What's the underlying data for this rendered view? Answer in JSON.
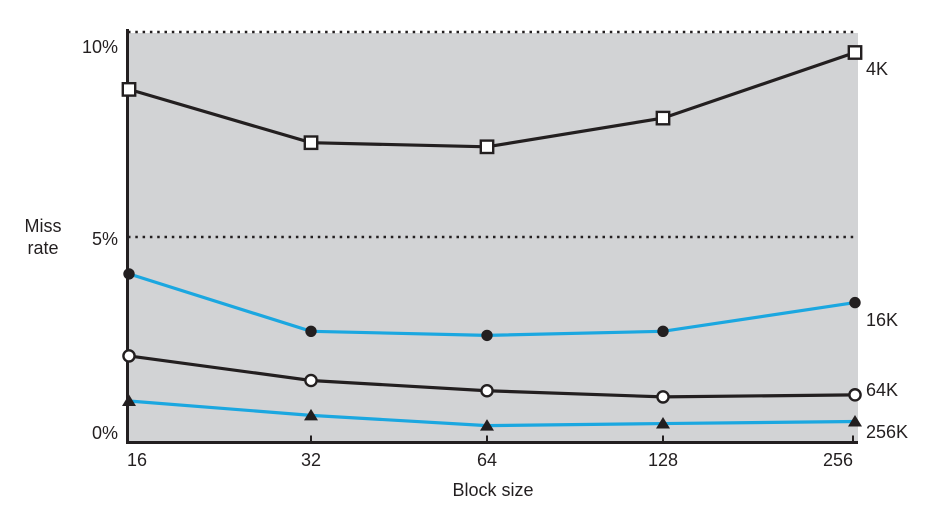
{
  "figure": {
    "plot_background": "#d2d3d5",
    "page_background": "#ffffff",
    "axis_color": "#231f20",
    "accent_blue": "#1ba7e0",
    "ylabel_lines": [
      "Miss",
      "rate"
    ]
  },
  "chart_data": {
    "type": "line",
    "title": "",
    "xlabel": "Block size",
    "ylabel": "Miss rate",
    "x_scale": "log2",
    "categories": [
      16,
      32,
      64,
      128,
      256
    ],
    "x_tick_labels": [
      "16",
      "32",
      "64",
      "128",
      "256"
    ],
    "y_ticks": [
      {
        "value": 0,
        "label": "0%"
      },
      {
        "value": 5,
        "label": "5%"
      },
      {
        "value": 10,
        "label": "10%"
      }
    ],
    "ylim": [
      0,
      10
    ],
    "grid": "dotted horizontal lines at 5% and 10%",
    "gridlines_dotted_at": [
      5,
      10
    ],
    "legend_position": "right-of-last-point",
    "series": [
      {
        "name": "4K",
        "color": "#231f20",
        "line_style": "solid",
        "marker": "open-square",
        "values": [
          8.6,
          7.3,
          7.2,
          7.9,
          9.5
        ]
      },
      {
        "name": "16K",
        "color": "#1ba7e0",
        "line_style": "solid",
        "marker": "filled-circle",
        "values": [
          4.1,
          2.7,
          2.6,
          2.7,
          3.4
        ]
      },
      {
        "name": "64K",
        "color": "#231f20",
        "line_style": "solid",
        "marker": "open-circle",
        "values": [
          2.1,
          1.5,
          1.25,
          1.1,
          1.15
        ]
      },
      {
        "name": "256K",
        "color": "#1ba7e0",
        "line_style": "solid",
        "marker": "filled-triangle",
        "values": [
          1.0,
          0.65,
          0.4,
          0.45,
          0.5
        ]
      }
    ]
  }
}
